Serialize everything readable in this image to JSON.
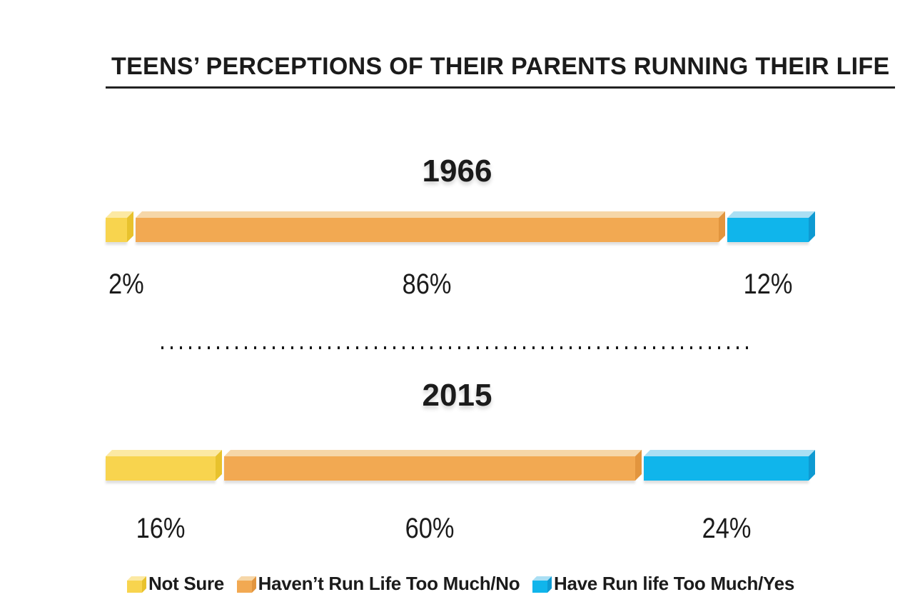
{
  "title": "TEENS’ PERCEPTIONS OF THEIR PARENTS RUNNING THEIR LIFE",
  "text_color": "#1b1b1b",
  "chart_data": {
    "type": "bar",
    "subtype": "stacked-horizontal-3d",
    "title": "TEENS’ PERCEPTIONS OF THEIR PARENTS RUNNING THEIR LIFE",
    "xlim": [
      0,
      100
    ],
    "grid": false,
    "legend_position": "bottom",
    "categories": [
      "1966",
      "2015"
    ],
    "series": [
      {
        "name": "Not Sure",
        "values": [
          2,
          16
        ],
        "colors": {
          "front": "#F8D44E",
          "top": "#FCE9A3",
          "side": "#E8C22D"
        }
      },
      {
        "name": "Haven’t Run Life Too Much/No",
        "values": [
          86,
          60
        ],
        "colors": {
          "front": "#F2A952",
          "top": "#F6D7A8",
          "side": "#E2953E"
        }
      },
      {
        "name": "Have Run life Too Much/Yes",
        "values": [
          12,
          24
        ],
        "colors": {
          "front": "#10B5EB",
          "top": "#AADFF4",
          "side": "#0E9AD2"
        }
      }
    ],
    "groups": [
      {
        "label": "1966",
        "values": [
          2,
          86,
          12
        ],
        "value_labels": [
          "2%",
          "86%",
          "12%"
        ]
      },
      {
        "label": "2015",
        "values": [
          16,
          60,
          24
        ],
        "value_labels": [
          "16%",
          "60%",
          "24%"
        ]
      }
    ]
  }
}
